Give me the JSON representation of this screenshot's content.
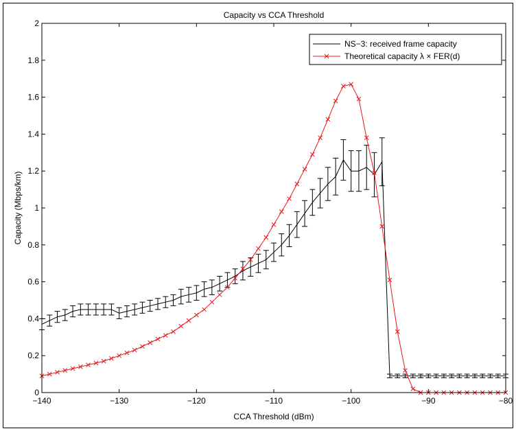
{
  "chart_data": {
    "type": "line",
    "title": "Capacity vs CCA Threshold",
    "xlabel": "CCA Threshold (dBm)",
    "ylabel": "Capacity (Mbps/km)",
    "xlim": [
      -140,
      -80
    ],
    "ylim": [
      0,
      2
    ],
    "xticks": [
      -140,
      -130,
      -120,
      -110,
      -100,
      -90,
      -80
    ],
    "xtick_labels": [
      "−140",
      "−130",
      "−120",
      "−110",
      "−100",
      "−90",
      "−80"
    ],
    "yticks": [
      0,
      0.2,
      0.4,
      0.6,
      0.8,
      1,
      1.2,
      1.4,
      1.6,
      1.8,
      2
    ],
    "ytick_labels": [
      "0",
      "0.2",
      "0.4",
      "0.6",
      "0.8",
      "1",
      "1.2",
      "1.4",
      "1.6",
      "1.8",
      "2"
    ],
    "grid": false,
    "legend_position": "top-right",
    "series": [
      {
        "name": "NS−3: received frame capacity",
        "color": "#000000",
        "marker": "none",
        "has_error_bars": true,
        "x": [
          -140,
          -139,
          -138,
          -137,
          -136,
          -135,
          -134,
          -133,
          -132,
          -131,
          -130,
          -129,
          -128,
          -127,
          -126,
          -125,
          -124,
          -123,
          -122,
          -121,
          -120,
          -119,
          -118,
          -117,
          -116,
          -115,
          -114,
          -113,
          -112,
          -111,
          -110,
          -109,
          -108,
          -107,
          -106,
          -105,
          -104,
          -103,
          -102,
          -101,
          -100,
          -99,
          -98,
          -97,
          -96,
          -95,
          -94,
          -93,
          -92,
          -91,
          -90,
          -89,
          -88,
          -87,
          -86,
          -85,
          -84,
          -83,
          -82,
          -81,
          -80
        ],
        "y": [
          0.37,
          0.39,
          0.41,
          0.42,
          0.44,
          0.45,
          0.45,
          0.45,
          0.45,
          0.45,
          0.43,
          0.44,
          0.45,
          0.46,
          0.47,
          0.48,
          0.49,
          0.5,
          0.52,
          0.53,
          0.54,
          0.56,
          0.57,
          0.59,
          0.61,
          0.63,
          0.66,
          0.68,
          0.7,
          0.72,
          0.76,
          0.8,
          0.85,
          0.91,
          0.97,
          1.03,
          1.08,
          1.13,
          1.17,
          1.26,
          1.2,
          1.2,
          1.22,
          1.18,
          1.25,
          0.09,
          0.09,
          0.09,
          0.09,
          0.09,
          0.09,
          0.09,
          0.09,
          0.09,
          0.09,
          0.09,
          0.09,
          0.09,
          0.09,
          0.09,
          0.09
        ],
        "err": [
          0.03,
          0.03,
          0.03,
          0.03,
          0.03,
          0.03,
          0.03,
          0.03,
          0.03,
          0.03,
          0.03,
          0.03,
          0.03,
          0.03,
          0.03,
          0.03,
          0.03,
          0.03,
          0.04,
          0.04,
          0.04,
          0.04,
          0.04,
          0.04,
          0.04,
          0.04,
          0.05,
          0.05,
          0.05,
          0.05,
          0.05,
          0.06,
          0.06,
          0.07,
          0.07,
          0.07,
          0.08,
          0.09,
          0.1,
          0.11,
          0.11,
          0.11,
          0.12,
          0.12,
          0.13,
          0.01,
          0.01,
          0.01,
          0.01,
          0.01,
          0.01,
          0.01,
          0.01,
          0.01,
          0.01,
          0.01,
          0.01,
          0.01,
          0.01,
          0.01,
          0.01
        ]
      },
      {
        "name": "Theoretical capacity λ × FER(d)",
        "color": "#e8161c",
        "marker": "x",
        "has_error_bars": false,
        "x": [
          -140,
          -139,
          -138,
          -137,
          -136,
          -135,
          -134,
          -133,
          -132,
          -131,
          -130,
          -129,
          -128,
          -127,
          -126,
          -125,
          -124,
          -123,
          -122,
          -121,
          -120,
          -119,
          -118,
          -117,
          -116,
          -115,
          -114,
          -113,
          -112,
          -111,
          -110,
          -109,
          -108,
          -107,
          -106,
          -105,
          -104,
          -103,
          -102,
          -101,
          -100,
          -99,
          -98,
          -97,
          -96,
          -95,
          -94,
          -93,
          -92,
          -91,
          -90,
          -89,
          -88,
          -87,
          -86,
          -85,
          -84,
          -83,
          -82,
          -81,
          -80
        ],
        "y": [
          0.09,
          0.1,
          0.11,
          0.12,
          0.13,
          0.14,
          0.15,
          0.16,
          0.17,
          0.185,
          0.2,
          0.215,
          0.23,
          0.25,
          0.27,
          0.29,
          0.31,
          0.33,
          0.36,
          0.39,
          0.42,
          0.45,
          0.49,
          0.53,
          0.57,
          0.62,
          0.67,
          0.72,
          0.78,
          0.84,
          0.91,
          0.98,
          1.05,
          1.13,
          1.21,
          1.29,
          1.38,
          1.48,
          1.58,
          1.66,
          1.67,
          1.59,
          1.38,
          1.19,
          0.9,
          0.61,
          0.33,
          0.12,
          0.02,
          0.0,
          0.0,
          0.0,
          0.0,
          0.0,
          0.0,
          0.0,
          0.0,
          0.0,
          0.0,
          0.0,
          0.0
        ]
      }
    ]
  }
}
